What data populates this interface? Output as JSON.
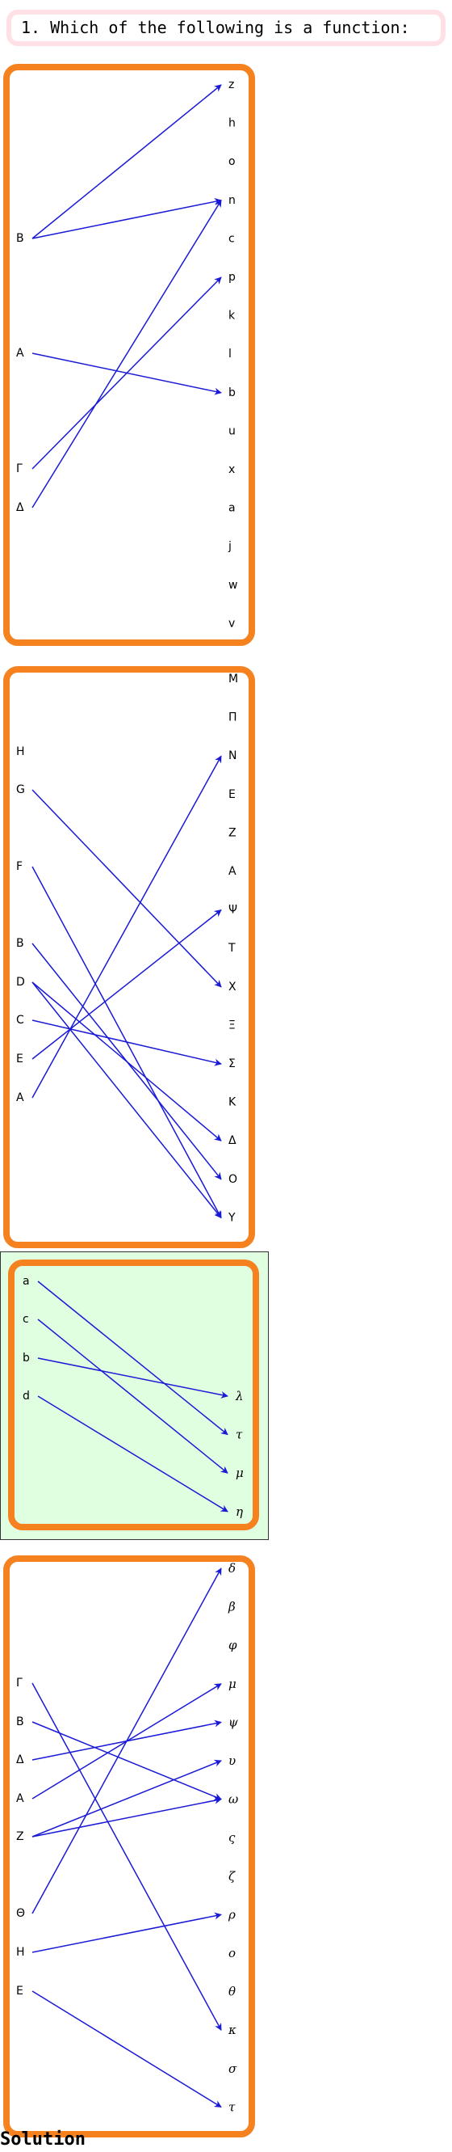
{
  "question": "1. Which of the following is a function:",
  "solution_label": "Solution",
  "colors": {
    "frame": "#f5811f",
    "arrow": "#1a1ad6",
    "highlight_bg": "#e0ffe0",
    "question_border": "#ffe0e6"
  },
  "options": [
    {
      "id": "option-1",
      "highlighted": false,
      "domain": [
        "B",
        "A",
        "Γ",
        "Δ"
      ],
      "codomain": [
        "z",
        "h",
        "o",
        "n",
        "c",
        "p",
        "k",
        "l",
        "b",
        "u",
        "x",
        "a",
        "j",
        "w",
        "v"
      ],
      "mapping": [
        [
          "B",
          "z"
        ],
        [
          "B",
          "n"
        ],
        [
          "A",
          "b"
        ],
        [
          "Γ",
          "p"
        ],
        [
          "Δ",
          "n"
        ]
      ]
    },
    {
      "id": "option-2",
      "highlighted": false,
      "domain": [
        "H",
        "G",
        "F",
        "B",
        "D",
        "C",
        "E",
        "A"
      ],
      "codomain": [
        "M",
        "Π",
        "N",
        "E",
        "Z",
        "A",
        "Ψ",
        "T",
        "X",
        "Ξ",
        "Σ",
        "K",
        "Δ",
        "O",
        "Y"
      ],
      "mapping": [
        [
          "G",
          "X"
        ],
        [
          "F",
          "Y"
        ],
        [
          "B",
          "O"
        ],
        [
          "D",
          "Δ"
        ],
        [
          "D",
          "Y"
        ],
        [
          "C",
          "Σ"
        ],
        [
          "E",
          "Ψ"
        ],
        [
          "A",
          "N"
        ]
      ]
    },
    {
      "id": "option-3",
      "highlighted": true,
      "domain": [
        "a",
        "c",
        "b",
        "d"
      ],
      "codomain": [
        "λ",
        "τ",
        "μ",
        "η"
      ],
      "mapping": [
        [
          "a",
          "τ"
        ],
        [
          "c",
          "μ"
        ],
        [
          "b",
          "λ"
        ],
        [
          "d",
          "η"
        ]
      ]
    },
    {
      "id": "option-4",
      "highlighted": false,
      "domain": [
        "Γ",
        "B",
        "Δ",
        "A",
        "Z",
        "Θ",
        "H",
        "E"
      ],
      "codomain": [
        "δ",
        "β",
        "φ",
        "μ",
        "ψ",
        "υ",
        "ω",
        "ς",
        "ζ",
        "ρ",
        "ο",
        "θ",
        "κ",
        "σ",
        "τ"
      ],
      "mapping": [
        [
          "Γ",
          "κ"
        ],
        [
          "B",
          "ω"
        ],
        [
          "Δ",
          "ψ"
        ],
        [
          "A",
          "μ"
        ],
        [
          "Z",
          "υ"
        ],
        [
          "Z",
          "ω"
        ],
        [
          "Θ",
          "δ"
        ],
        [
          "H",
          "ρ"
        ],
        [
          "E",
          "τ"
        ]
      ]
    }
  ]
}
